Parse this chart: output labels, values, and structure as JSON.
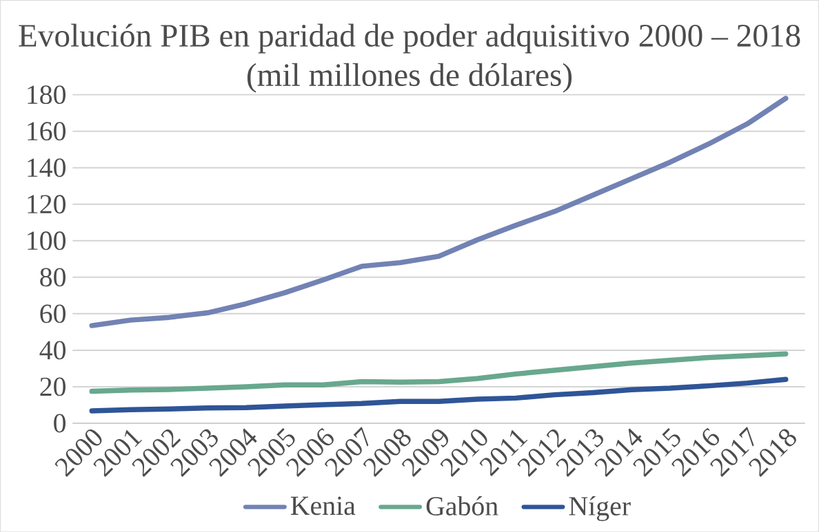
{
  "chart_data": {
    "type": "line",
    "title": "Evolución PIB en paridad de poder adquisitivo 2000 – 2018",
    "subtitle": "(mil millones de dólares)",
    "categories": [
      "2000",
      "2001",
      "2002",
      "2003",
      "2004",
      "2005",
      "2006",
      "2007",
      "2008",
      "2009",
      "2010",
      "2011",
      "2012",
      "2013",
      "2014",
      "2015",
      "2016",
      "2017",
      "2018"
    ],
    "series": [
      {
        "name": "Kenia",
        "color": "#7282b4",
        "values": [
          53.5,
          56.5,
          58,
          60.5,
          65.5,
          71.5,
          78.5,
          86,
          88,
          91.5,
          100.5,
          108.5,
          116,
          125,
          134,
          143,
          153,
          164,
          178
        ]
      },
      {
        "name": "Gabón",
        "color": "#68a88e",
        "values": [
          17.5,
          18.2,
          18.5,
          19.2,
          20,
          21,
          21,
          22.8,
          22.5,
          22.8,
          24.5,
          27,
          29,
          31,
          33,
          34.5,
          36,
          37,
          38
        ]
      },
      {
        "name": "Níger",
        "color": "#2f5597",
        "values": [
          6.8,
          7.4,
          7.8,
          8.4,
          8.6,
          9.4,
          10.2,
          10.8,
          12,
          12,
          13.2,
          13.8,
          15.6,
          16.8,
          18.4,
          19.2,
          20.5,
          22,
          24
        ]
      }
    ],
    "ylim": [
      0,
      180
    ],
    "yticks": [
      0,
      20,
      40,
      60,
      80,
      100,
      120,
      140,
      160,
      180
    ],
    "grid": "y",
    "legend": "bottom",
    "marker": "none",
    "line_style": "solid"
  }
}
